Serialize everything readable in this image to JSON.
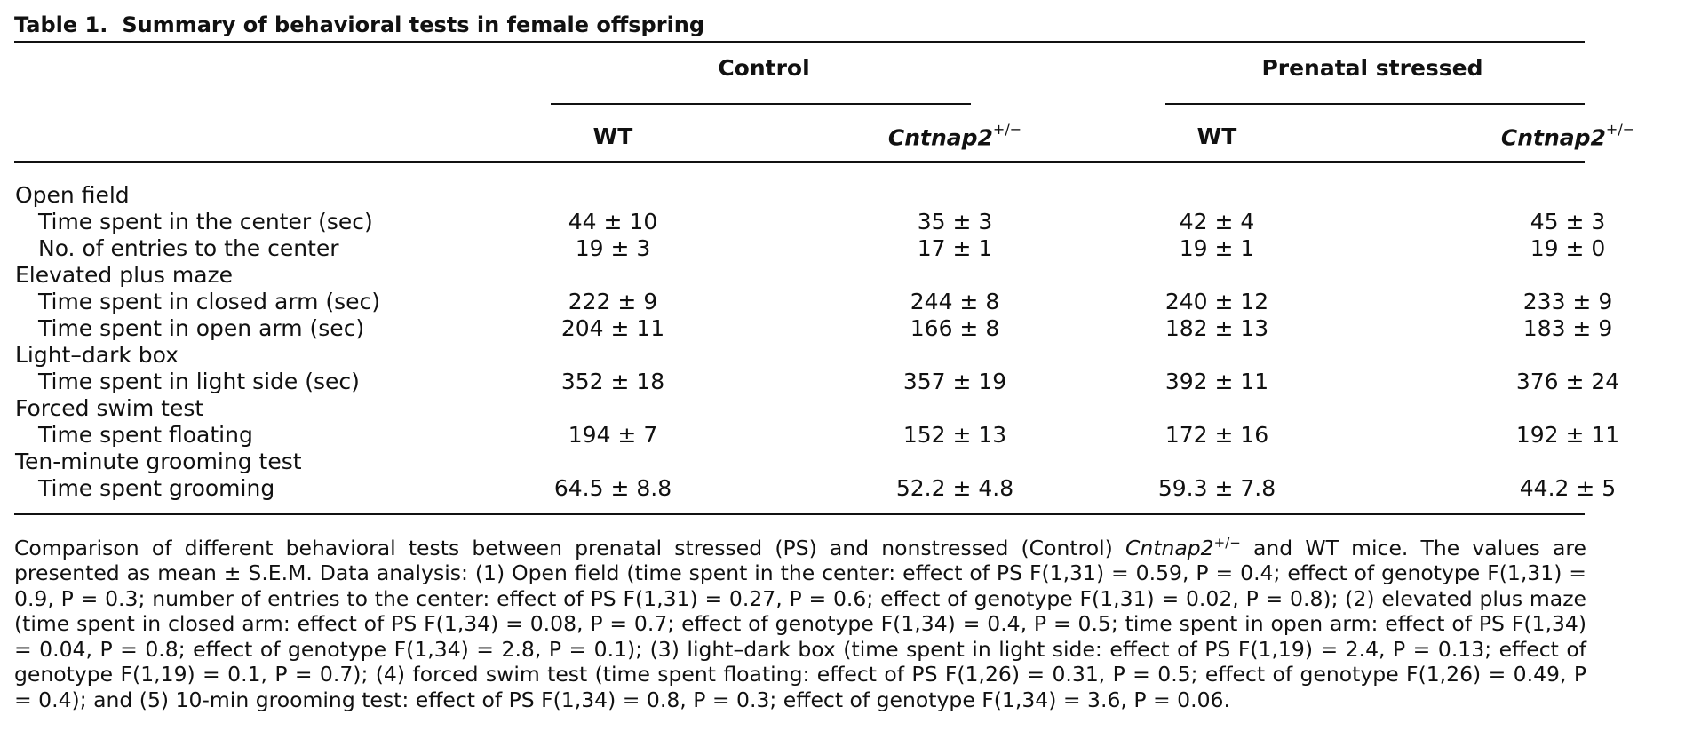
{
  "table": {
    "label": "Table 1.",
    "title": "Summary of behavioral tests in female offspring",
    "group_headers": [
      "Control",
      "Prenatal stressed"
    ],
    "col_headers": [
      {
        "text": "WT",
        "italic": false,
        "sup": ""
      },
      {
        "text": "Cntnap2",
        "italic": true,
        "sup": "+/−"
      },
      {
        "text": "WT",
        "italic": false,
        "sup": ""
      },
      {
        "text": "Cntnap2",
        "italic": true,
        "sup": "+/−"
      }
    ],
    "rows": [
      {
        "type": "category",
        "label": "Open field"
      },
      {
        "type": "data",
        "label": "Time spent in the center (sec)",
        "values": [
          "44 ± 10",
          "35 ± 3",
          "42 ± 4",
          "45 ± 3"
        ]
      },
      {
        "type": "data",
        "label": "No. of entries to the center",
        "values": [
          "19 ± 3",
          "17 ± 1",
          "19 ± 1",
          "19 ± 0"
        ]
      },
      {
        "type": "category",
        "label": "Elevated plus maze"
      },
      {
        "type": "data",
        "label": "Time spent in closed arm (sec)",
        "values": [
          "222 ± 9",
          "244 ± 8",
          "240 ± 12",
          "233 ± 9"
        ]
      },
      {
        "type": "data",
        "label": "Time spent in open arm (sec)",
        "values": [
          "204 ± 11",
          "166 ± 8",
          "182 ± 13",
          "183 ± 9"
        ]
      },
      {
        "type": "category",
        "label": "Light–dark box"
      },
      {
        "type": "data",
        "label": "Time spent in light side (sec)",
        "values": [
          "352 ± 18",
          "357 ± 19",
          "392 ± 11",
          "376 ± 24"
        ]
      },
      {
        "type": "category",
        "label": "Forced swim test"
      },
      {
        "type": "data",
        "label": "Time spent floating",
        "values": [
          "194 ± 7",
          "152 ± 13",
          "172 ± 16",
          "192 ± 11"
        ]
      },
      {
        "type": "category",
        "label": "Ten-minute grooming test"
      },
      {
        "type": "data",
        "label": "Time spent grooming",
        "values": [
          "64.5 ± 8.8",
          "52.2 ± 4.8",
          "59.3 ± 7.8",
          "44.2 ± 5"
        ]
      }
    ]
  },
  "footnote": {
    "pre1": "Comparison of different behavioral tests between prenatal stressed (PS) and nonstressed (Control) ",
    "gene": "Cntnap2",
    "gene_sup": "+/−",
    "body": " and WT mice. The values are presented as mean ± S.E.M. Data analysis: (1) Open field (time spent in the center: effect of PS F(1,31) = 0.59, P = 0.4; effect of genotype F(1,31) = 0.9, P = 0.3; number of entries to the center: effect of PS F(1,31) = 0.27, P = 0.6; effect of genotype F(1,31) = 0.02, P = 0.8); (2) elevated plus maze (time spent in closed arm: effect of PS F(1,34) = 0.08, P = 0.7; effect of genotype F(1,34) = 0.4, P = 0.5; time spent in open arm: effect of PS F(1,34) = 0.04, P = 0.8; effect of genotype F(1,34) = 2.8, P = 0.1); (3) light–dark box (time spent in light side: effect of PS F(1,19) = 2.4, P = 0.13; effect of genotype F(1,19) = 0.1, P = 0.7); (4) forced swim test (time spent floating: effect of PS F(1,26) = 0.31, P = 0.5; effect of genotype F(1,26) = 0.49, P = 0.4); and (5) 10-min grooming test: effect of PS F(1,34) = 0.8, P = 0.3; effect of genotype F(1,34) = 3.6, P = 0.06."
  }
}
